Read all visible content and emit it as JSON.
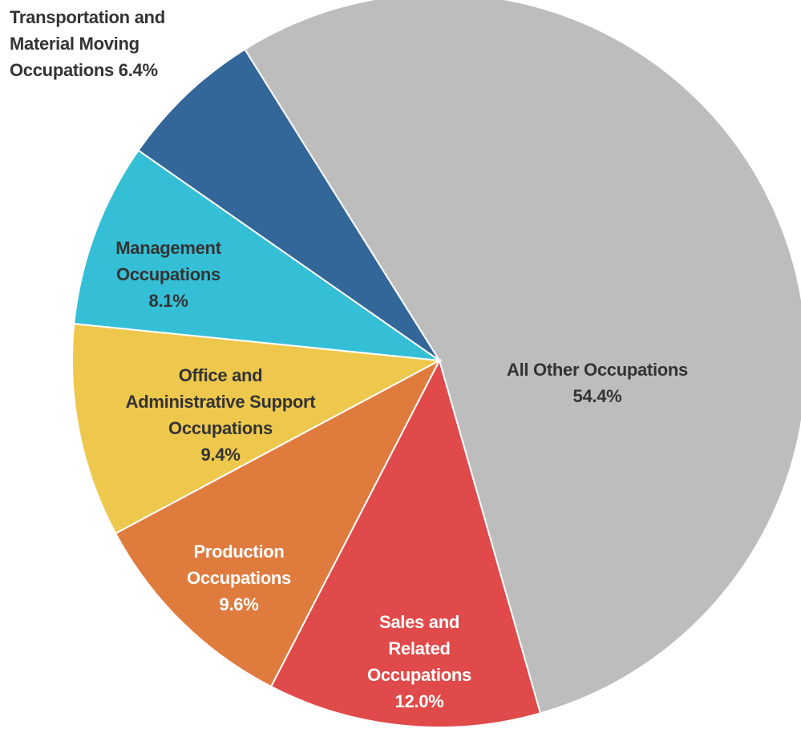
{
  "chart_data": {
    "type": "pie",
    "categories": [
      "All Other Occupations",
      "Sales and Related Occupations",
      "Production Occupations",
      "Office and Administrative Support Occupations",
      "Management Occupations",
      "Transportation and Material Moving Occupations"
    ],
    "values": [
      54.4,
      12.0,
      9.6,
      9.4,
      8.1,
      6.4
    ],
    "value_labels": [
      "54.4%",
      "12.0%",
      "9.6%",
      "9.4%",
      "8.1%",
      "6.4%"
    ],
    "colors": [
      "#bdbdbd",
      "#e04a4a",
      "#e07b3e",
      "#eec84d",
      "#35bfd6",
      "#336699"
    ]
  }
}
